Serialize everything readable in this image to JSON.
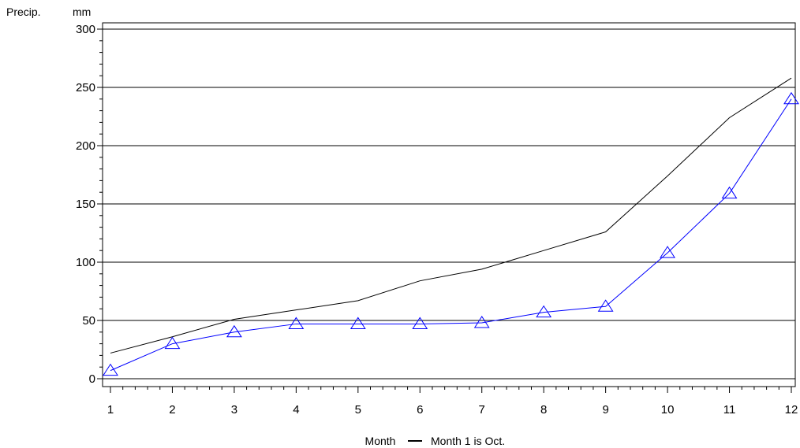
{
  "chart_data": {
    "type": "line",
    "title": "",
    "ylabel": "Precip.",
    "yunit": "mm",
    "xlabel_left": "Month",
    "xlabel_right": "Month 1 is Oct.",
    "x": [
      1,
      2,
      3,
      4,
      5,
      6,
      7,
      8,
      9,
      10,
      11,
      12
    ],
    "xticks": [
      "1",
      "2",
      "3",
      "4",
      "5",
      "6",
      "7",
      "8",
      "9",
      "10",
      "11",
      "12"
    ],
    "yticks": [
      "0",
      "50",
      "100",
      "150",
      "200",
      "250",
      "300"
    ],
    "xlim": [
      1,
      12
    ],
    "ylim": [
      0,
      300
    ],
    "grid": "horizontal",
    "series": [
      {
        "color": "#000000",
        "marker": "none",
        "values": [
          22,
          36,
          51,
          59,
          67,
          84,
          94,
          110,
          126,
          174,
          224,
          258
        ]
      },
      {
        "color": "#0000ff",
        "marker": "triangle",
        "values": [
          7,
          30,
          40,
          47,
          47,
          47,
          48,
          57,
          62,
          108,
          159,
          240
        ]
      }
    ]
  }
}
